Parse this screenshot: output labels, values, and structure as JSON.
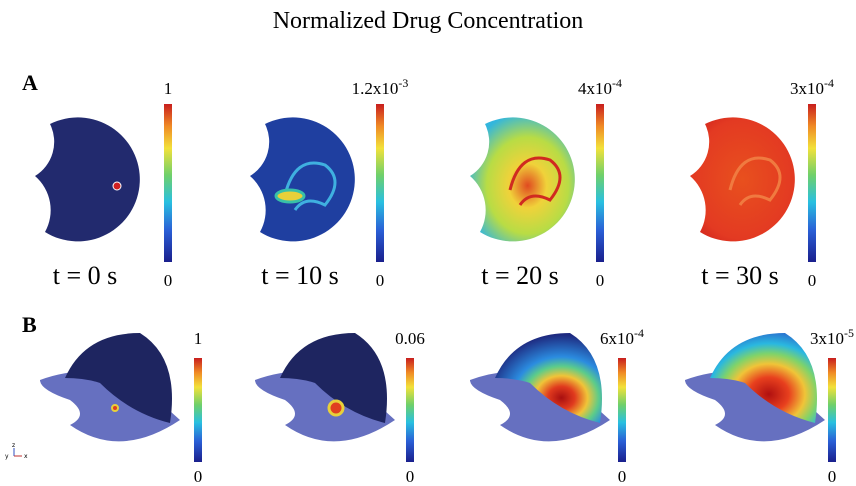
{
  "title": "Normalized Drug Concentration",
  "panels": [
    {
      "label": "A",
      "items": [
        {
          "max": {
            "base": "1"
          },
          "min": "0",
          "time": "t = 0 s"
        },
        {
          "max": {
            "base": "1.2x10",
            "exp": "-3"
          },
          "min": "0",
          "time": "t = 10 s"
        },
        {
          "max": {
            "base": "4x10",
            "exp": "-4"
          },
          "min": "0",
          "time": "t = 20 s"
        },
        {
          "max": {
            "base": "3x10",
            "exp": "-4"
          },
          "min": "0",
          "time": "t = 30 s"
        }
      ]
    },
    {
      "label": "B",
      "items": [
        {
          "max": {
            "base": "1"
          },
          "min": "0"
        },
        {
          "max": {
            "base": "0.06"
          },
          "min": "0"
        },
        {
          "max": {
            "base": "6x10",
            "exp": "-4"
          },
          "min": "0"
        },
        {
          "max": {
            "base": "3x10",
            "exp": "-5"
          },
          "min": "0"
        }
      ]
    }
  ],
  "axes_triad": [
    "z",
    "y",
    "x"
  ]
}
